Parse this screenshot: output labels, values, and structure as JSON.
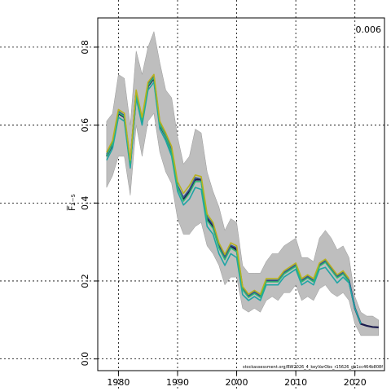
{
  "chart_data": {
    "type": "line",
    "corner_label": "0.006",
    "ylabel": "F̅₂₋₅",
    "footer_note": "stockassessment.org/BW2026_4_keyVarObs_r15626_gh1cc464b808f",
    "xlim": [
      1976.5,
      2025
    ],
    "ylim": [
      -0.03,
      0.875
    ],
    "xticks": [
      1980,
      1990,
      2000,
      2010,
      2020
    ],
    "yticks": [
      0.0,
      0.2,
      0.4,
      0.6,
      0.8
    ],
    "x_grid_at": [
      1980,
      1990,
      2000,
      2010,
      2020
    ],
    "y_grid_at": [
      0.0,
      0.2,
      0.4,
      0.6,
      0.8
    ],
    "grid": true,
    "years": [
      1978,
      1979,
      1980,
      1981,
      1982,
      1983,
      1984,
      1985,
      1986,
      1987,
      1988,
      1989,
      1990,
      1991,
      1992,
      1993,
      1994,
      1995,
      1996,
      1997,
      1998,
      1999,
      2000,
      2001,
      2002,
      2003,
      2004,
      2005,
      2006,
      2007,
      2008,
      2009,
      2010,
      2011,
      2012,
      2013,
      2014,
      2015,
      2016,
      2017,
      2018,
      2019,
      2020,
      2021,
      2022,
      2023,
      2024
    ],
    "band_years": [
      1978,
      1979,
      1980,
      1981,
      1982,
      1983,
      1984,
      1985,
      1986,
      1987,
      1988,
      1989,
      1990,
      1991,
      1992,
      1993,
      1994,
      1995,
      1996,
      1997,
      1998,
      1999,
      2000,
      2001,
      2002,
      2003,
      2004,
      2005,
      2006,
      2007,
      2008,
      2009,
      2010,
      2011,
      2012,
      2013,
      2014,
      2015,
      2016,
      2017,
      2018,
      2019,
      2020,
      2021,
      2022,
      2023,
      2024
    ],
    "band_upper": [
      0.61,
      0.63,
      0.73,
      0.72,
      0.6,
      0.79,
      0.73,
      0.8,
      0.84,
      0.76,
      0.69,
      0.67,
      0.57,
      0.5,
      0.52,
      0.59,
      0.58,
      0.48,
      0.43,
      0.39,
      0.33,
      0.36,
      0.35,
      0.24,
      0.22,
      0.22,
      0.22,
      0.25,
      0.27,
      0.27,
      0.29,
      0.3,
      0.31,
      0.26,
      0.26,
      0.25,
      0.31,
      0.33,
      0.31,
      0.28,
      0.29,
      0.26,
      0.16,
      0.12,
      0.11,
      0.11,
      0.1
    ],
    "band_lower": [
      0.44,
      0.47,
      0.52,
      0.52,
      0.42,
      0.6,
      0.52,
      0.61,
      0.63,
      0.53,
      0.48,
      0.45,
      0.36,
      0.32,
      0.32,
      0.34,
      0.35,
      0.29,
      0.27,
      0.24,
      0.19,
      0.21,
      0.21,
      0.13,
      0.12,
      0.13,
      0.12,
      0.15,
      0.16,
      0.15,
      0.17,
      0.17,
      0.19,
      0.15,
      0.16,
      0.15,
      0.18,
      0.19,
      0.17,
      0.16,
      0.17,
      0.15,
      0.09,
      0.06,
      0.06,
      0.06,
      0.06
    ],
    "series": [
      {
        "color": "#1b1b4d",
        "width": 2.2,
        "start": 1978,
        "end": 2024,
        "values": [
          0.52,
          0.55,
          0.63,
          0.62,
          0.5,
          0.68,
          0.61,
          0.7,
          0.72,
          0.6,
          0.57,
          0.53,
          0.44,
          0.41,
          0.43,
          0.46,
          0.46,
          0.36,
          0.34,
          0.29,
          0.26,
          0.29,
          0.28,
          0.18,
          0.16,
          0.17,
          0.16,
          0.2,
          0.2,
          0.2,
          0.22,
          0.23,
          0.24,
          0.2,
          0.21,
          0.2,
          0.24,
          0.25,
          0.23,
          0.21,
          0.22,
          0.2,
          0.13,
          0.09,
          0.085,
          0.082,
          0.081
        ]
      },
      {
        "color": "#3b5b8f",
        "width": 1.6,
        "start": 1978,
        "end": 2020,
        "values": [
          0.525,
          0.555,
          0.635,
          0.625,
          0.505,
          0.685,
          0.615,
          0.705,
          0.725,
          0.605,
          0.575,
          0.535,
          0.445,
          0.415,
          0.435,
          0.465,
          0.462,
          0.365,
          0.345,
          0.295,
          0.262,
          0.292,
          0.285,
          0.182,
          0.162,
          0.172,
          0.162,
          0.202,
          0.202,
          0.202,
          0.222,
          0.232,
          0.242,
          0.202,
          0.212,
          0.202,
          0.242,
          0.252,
          0.232,
          0.212,
          0.222,
          0.202,
          0.132
        ]
      },
      {
        "color": "#1fa5a5",
        "width": 1.6,
        "start": 1978,
        "end": 2021,
        "values": [
          0.51,
          0.54,
          0.62,
          0.61,
          0.49,
          0.67,
          0.6,
          0.69,
          0.71,
          0.59,
          0.56,
          0.52,
          0.43,
          0.395,
          0.41,
          0.44,
          0.435,
          0.34,
          0.32,
          0.27,
          0.24,
          0.27,
          0.26,
          0.165,
          0.15,
          0.16,
          0.15,
          0.19,
          0.19,
          0.19,
          0.21,
          0.22,
          0.23,
          0.19,
          0.2,
          0.19,
          0.23,
          0.235,
          0.215,
          0.195,
          0.21,
          0.195,
          0.13,
          0.09
        ]
      },
      {
        "color": "#2fb875",
        "width": 1.6,
        "start": 1978,
        "end": 2019,
        "values": [
          0.52,
          0.552,
          0.632,
          0.622,
          0.502,
          0.682,
          0.612,
          0.702,
          0.722,
          0.602,
          0.57,
          0.53,
          0.44,
          0.405,
          0.425,
          0.455,
          0.455,
          0.355,
          0.335,
          0.285,
          0.255,
          0.285,
          0.275,
          0.178,
          0.158,
          0.168,
          0.158,
          0.198,
          0.198,
          0.198,
          0.218,
          0.228,
          0.238,
          0.198,
          0.208,
          0.198,
          0.238,
          0.248,
          0.228,
          0.208,
          0.218,
          0.198
        ]
      },
      {
        "color": "#b8b21e",
        "width": 1.6,
        "start": 1978,
        "end": 2019,
        "values": [
          0.53,
          0.56,
          0.64,
          0.63,
          0.51,
          0.69,
          0.62,
          0.71,
          0.73,
          0.61,
          0.58,
          0.545,
          0.455,
          0.425,
          0.445,
          0.472,
          0.468,
          0.372,
          0.35,
          0.298,
          0.268,
          0.298,
          0.29,
          0.186,
          0.166,
          0.176,
          0.166,
          0.206,
          0.206,
          0.206,
          0.226,
          0.236,
          0.246,
          0.206,
          0.216,
          0.206,
          0.246,
          0.256,
          0.236,
          0.216,
          0.226,
          0.206
        ]
      }
    ]
  }
}
